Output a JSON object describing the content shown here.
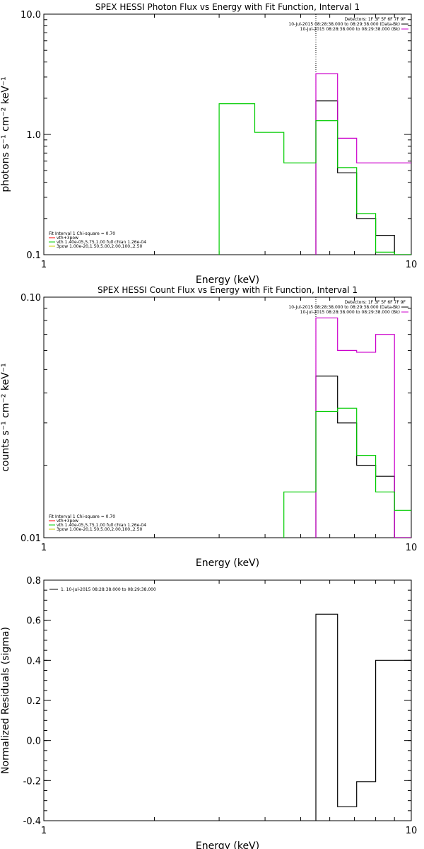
{
  "chart_data": [
    {
      "type": "line",
      "title": "SPEX HESSI Photon Flux vs Energy with Fit Function, Interval 1",
      "xlabel": "Energy (keV)",
      "ylabel": "photons s⁻¹ cm⁻² keV⁻¹",
      "xscale": "log",
      "yscale": "log",
      "xlim": [
        1,
        10
      ],
      "ylim": [
        0.1,
        10
      ],
      "xticks": [
        "1",
        "10"
      ],
      "yticks": [
        "0.1",
        "1.0",
        "10.0"
      ],
      "detectors_label": "Detectors: 1F 3F 5F 6F 7F 9F",
      "legend_top": [
        {
          "text": "10-Jul-2015 08:28:38.000 to 08:29:38.000 (Data-Bk)",
          "color": "#000000"
        },
        {
          "text": "10-Jul-2015 08:28:38.000 to 08:29:38.000 (Bk)",
          "color": "#cc00cc"
        }
      ],
      "legend_bottom": [
        {
          "text": "Fit Interval 1    Chi-square = 0.70",
          "color": "#000000"
        },
        {
          "text": "vth+3pow",
          "color": "#ff0000"
        },
        {
          "text": "vth 1.40e-05,5.75,1.00  full chian 1.26e-04",
          "color": "#00cc00"
        },
        {
          "text": "3pow 1.00e-20,1.50,5.00,2.00,100.,2.50",
          "color": "#cccc00"
        }
      ],
      "marker_x": 5.5,
      "series": [
        {
          "color": "#000000",
          "edges": [
            5.5,
            6.3,
            7.1,
            8.0,
            9.0,
            10.0
          ],
          "values": [
            1.9,
            0.48,
            0.2,
            0.145,
            0.1
          ]
        },
        {
          "color": "#cc00cc",
          "edges": [
            5.5,
            6.3,
            7.1,
            8.0,
            9.0,
            10.0
          ],
          "values": [
            3.2,
            0.93,
            0.58,
            0.58,
            0.58
          ]
        },
        {
          "color": "#00cc00",
          "edges": [
            3.0,
            3.75,
            4.5,
            5.5,
            6.3,
            7.1,
            8.0,
            9.0,
            10.0
          ],
          "values": [
            1.8,
            1.04,
            0.58,
            1.3,
            0.53,
            0.22,
            0.105,
            0.1
          ]
        }
      ]
    },
    {
      "type": "line",
      "title": "SPEX HESSI Count Flux vs Energy with Fit Function, Interval 1",
      "xlabel": "Energy (keV)",
      "ylabel": "counts s⁻¹ cm⁻² keV⁻¹",
      "xscale": "log",
      "yscale": "log",
      "xlim": [
        1,
        10
      ],
      "ylim": [
        0.01,
        0.1
      ],
      "xticks": [
        "1",
        "10"
      ],
      "yticks": [
        "0.01",
        "0.10"
      ],
      "detectors_label": "Detectors: 1F 3F 5F 6F 7F 9F",
      "legend_top": [
        {
          "text": "10-Jul-2015 08:28:38.000 to 08:29:38.000 (Data-Bk)",
          "color": "#000000"
        },
        {
          "text": "10-Jul-2015 08:28:38.000 to 08:29:38.000 (Bk)",
          "color": "#cc00cc"
        }
      ],
      "legend_bottom": [
        {
          "text": "Fit Interval 1    Chi-square = 0.70",
          "color": "#000000"
        },
        {
          "text": "vth+3pow",
          "color": "#ff0000"
        },
        {
          "text": "vth 1.40e-05,5.75,1.00  full chian 1.26e-04",
          "color": "#00cc00"
        },
        {
          "text": "3pow 1.00e-20,1.50,5.00,2.00,100.,2.50",
          "color": "#cccc00"
        }
      ],
      "marker_x": 5.5,
      "series": [
        {
          "color": "#000000",
          "edges": [
            5.5,
            6.3,
            7.1,
            8.0,
            9.0,
            10.0
          ],
          "values": [
            0.047,
            0.03,
            0.02,
            0.018,
            0.01
          ]
        },
        {
          "color": "#cc00cc",
          "edges": [
            5.5,
            6.3,
            7.1,
            8.0,
            9.0,
            10.0
          ],
          "values": [
            0.082,
            0.06,
            0.059,
            0.07,
            0.01
          ]
        },
        {
          "color": "#00cc00",
          "edges": [
            4.5,
            5.5,
            6.3,
            7.1,
            8.0,
            9.0,
            10.0
          ],
          "values": [
            0.0155,
            0.0335,
            0.0345,
            0.022,
            0.0155,
            0.013
          ]
        }
      ]
    },
    {
      "type": "line",
      "title": "",
      "xlabel": "Energy (keV)",
      "ylabel": "Normalized Residuals (sigma)",
      "xscale": "log",
      "yscale": "linear",
      "xlim": [
        1,
        10
      ],
      "ylim": [
        -0.4,
        0.8
      ],
      "xticks": [
        "1",
        "10"
      ],
      "yticks": [
        "-0.4",
        "-0.2",
        "0.0",
        "0.2",
        "0.4",
        "0.6",
        "0.8"
      ],
      "legend_top": [],
      "legend_bottom": [],
      "residual_legend": "1. 10-Jul-2015 08:28:38.000 to 08:29:38.000",
      "series": [
        {
          "color": "#000000",
          "edges": [
            5.5,
            6.3,
            7.1,
            8.0,
            9.0,
            10.0
          ],
          "values": [
            0.63,
            -0.33,
            -0.205,
            0.4,
            0.4
          ]
        }
      ]
    }
  ]
}
